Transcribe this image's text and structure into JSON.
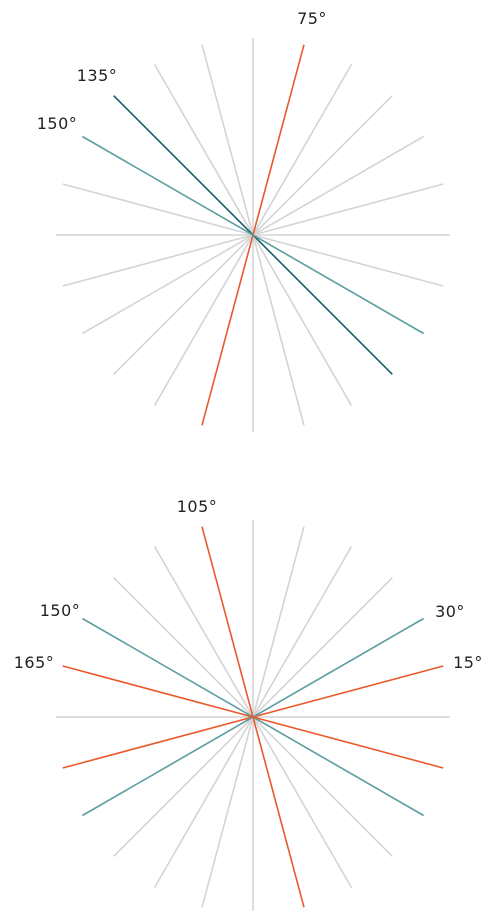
{
  "colors": {
    "neutral": "#d4d4d4",
    "orange": "#e8592b",
    "teal": "#5a9ea0",
    "dark_teal": "#155e6e"
  },
  "diagrams": [
    {
      "name": "upper-line-fan",
      "line_angles_deg": [
        0,
        15,
        30,
        45,
        60,
        75,
        90,
        105,
        120,
        135,
        150,
        165
      ],
      "highlights": [
        {
          "angle_deg": 75,
          "color_key": "orange"
        },
        {
          "angle_deg": 135,
          "color_key": "dark_teal"
        },
        {
          "angle_deg": 150,
          "color_key": "teal"
        }
      ],
      "labels": [
        {
          "text": "75°",
          "angle_deg": 75
        },
        {
          "text": "135°",
          "angle_deg": 135
        },
        {
          "text": "150°",
          "angle_deg": 150
        }
      ]
    },
    {
      "name": "lower-line-fan",
      "line_angles_deg": [
        0,
        15,
        30,
        45,
        60,
        75,
        90,
        105,
        120,
        135,
        150,
        165
      ],
      "highlights": [
        {
          "angle_deg": 15,
          "color_key": "orange"
        },
        {
          "angle_deg": 30,
          "color_key": "teal"
        },
        {
          "angle_deg": 105,
          "color_key": "orange"
        },
        {
          "angle_deg": 150,
          "color_key": "teal"
        },
        {
          "angle_deg": 165,
          "color_key": "orange"
        }
      ],
      "labels": [
        {
          "text": "105°",
          "angle_deg": 105
        },
        {
          "text": "150°",
          "angle_deg": 150
        },
        {
          "text": "30°",
          "angle_deg": 30
        },
        {
          "text": "165°",
          "angle_deg": 165
        },
        {
          "text": "15°",
          "angle_deg": 15
        }
      ]
    }
  ]
}
